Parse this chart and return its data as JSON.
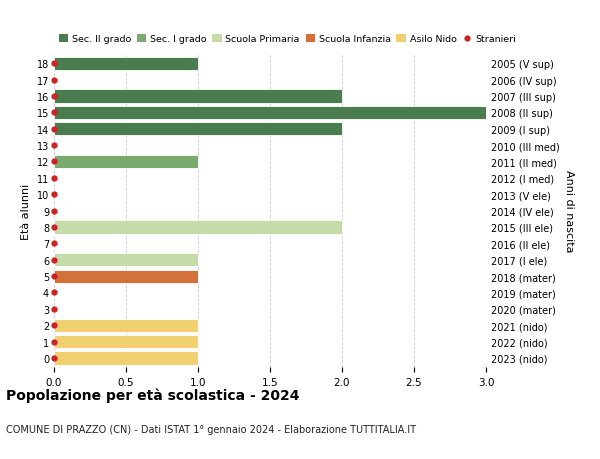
{
  "ages": [
    18,
    17,
    16,
    15,
    14,
    13,
    12,
    11,
    10,
    9,
    8,
    7,
    6,
    5,
    4,
    3,
    2,
    1,
    0
  ],
  "right_labels": [
    "2005 (V sup)",
    "2006 (IV sup)",
    "2007 (III sup)",
    "2008 (II sup)",
    "2009 (I sup)",
    "2010 (III med)",
    "2011 (II med)",
    "2012 (I med)",
    "2013 (V ele)",
    "2014 (IV ele)",
    "2015 (III ele)",
    "2016 (II ele)",
    "2017 (I ele)",
    "2018 (mater)",
    "2019 (mater)",
    "2020 (mater)",
    "2021 (nido)",
    "2022 (nido)",
    "2023 (nido)"
  ],
  "bars": [
    {
      "age": 18,
      "value": 1,
      "color": "#4a7c4e"
    },
    {
      "age": 17,
      "value": 0,
      "color": "#4a7c4e"
    },
    {
      "age": 16,
      "value": 2,
      "color": "#4a7c4e"
    },
    {
      "age": 15,
      "value": 3,
      "color": "#4a7c4e"
    },
    {
      "age": 14,
      "value": 2,
      "color": "#4a7c4e"
    },
    {
      "age": 13,
      "value": 0,
      "color": "#7aab6e"
    },
    {
      "age": 12,
      "value": 1,
      "color": "#7aab6e"
    },
    {
      "age": 11,
      "value": 0,
      "color": "#7aab6e"
    },
    {
      "age": 10,
      "value": 0,
      "color": "#c5dba8"
    },
    {
      "age": 9,
      "value": 0,
      "color": "#c5dba8"
    },
    {
      "age": 8,
      "value": 2,
      "color": "#c5dba8"
    },
    {
      "age": 7,
      "value": 0,
      "color": "#c5dba8"
    },
    {
      "age": 6,
      "value": 1,
      "color": "#c5dba8"
    },
    {
      "age": 5,
      "value": 1,
      "color": "#d4703a"
    },
    {
      "age": 4,
      "value": 0,
      "color": "#d4703a"
    },
    {
      "age": 3,
      "value": 0,
      "color": "#d4703a"
    },
    {
      "age": 2,
      "value": 1,
      "color": "#f0d070"
    },
    {
      "age": 1,
      "value": 1,
      "color": "#f0d070"
    },
    {
      "age": 0,
      "value": 1,
      "color": "#f0d070"
    }
  ],
  "legend_labels": [
    "Sec. II grado",
    "Sec. I grado",
    "Scuola Primaria",
    "Scuola Infanzia",
    "Asilo Nido",
    "Stranieri"
  ],
  "legend_colors": [
    "#4a7c4e",
    "#7aab6e",
    "#c5dba8",
    "#d4703a",
    "#f0d070",
    "#cc2222"
  ],
  "ylabel_left": "Età alunni",
  "ylabel_right": "Anni di nascita",
  "xlim": [
    0,
    3.0
  ],
  "xticks": [
    0,
    0.5,
    1.0,
    1.5,
    2.0,
    2.5,
    3.0
  ],
  "ylim": [
    -0.55,
    18.55
  ],
  "title": "Popolazione per età scolastica - 2024",
  "subtitle": "COMUNE DI PRAZZO (CN) - Dati ISTAT 1° gennaio 2024 - Elaborazione TUTTITALIA.IT",
  "bg_color": "#ffffff",
  "grid_color": "#cccccc",
  "bar_height": 0.8
}
